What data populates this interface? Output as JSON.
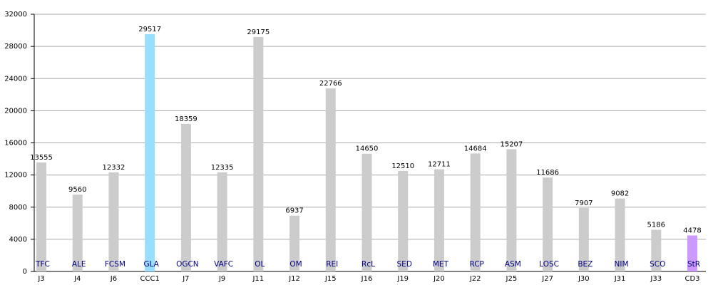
{
  "chart_data": {
    "type": "bar",
    "categories": [
      "J3",
      "J4",
      "J6",
      "CCC1",
      "J7",
      "J9",
      "J11",
      "J12",
      "J15",
      "J16",
      "J19",
      "J20",
      "J22",
      "J25",
      "J27",
      "J30",
      "J31",
      "J33",
      "CD3"
    ],
    "values": [
      13555,
      9560,
      12332,
      29517,
      18359,
      12335,
      29175,
      6937,
      22766,
      14650,
      12510,
      12711,
      14684,
      15207,
      11686,
      7907,
      9082,
      5186,
      4478
    ],
    "teams": [
      "TFC",
      "ALE",
      "FCSM",
      "GLA",
      "OGCN",
      "VAFC",
      "OL",
      "OM",
      "REI",
      "RcL",
      "SED",
      "MET",
      "RCP",
      "ASM",
      "LOSC",
      "BEZ",
      "NIM",
      "SCO",
      "StR"
    ],
    "colors": [
      "#cccccc",
      "#cccccc",
      "#cccccc",
      "#99ddff",
      "#cccccc",
      "#cccccc",
      "#cccccc",
      "#cccccc",
      "#cccccc",
      "#cccccc",
      "#cccccc",
      "#cccccc",
      "#cccccc",
      "#cccccc",
      "#cccccc",
      "#cccccc",
      "#cccccc",
      "#cccccc",
      "#cc99ff"
    ],
    "ylim": [
      0,
      32000
    ],
    "yticks": [
      0,
      4000,
      8000,
      12000,
      16000,
      20000,
      24000,
      28000,
      32000
    ],
    "grid": true
  }
}
